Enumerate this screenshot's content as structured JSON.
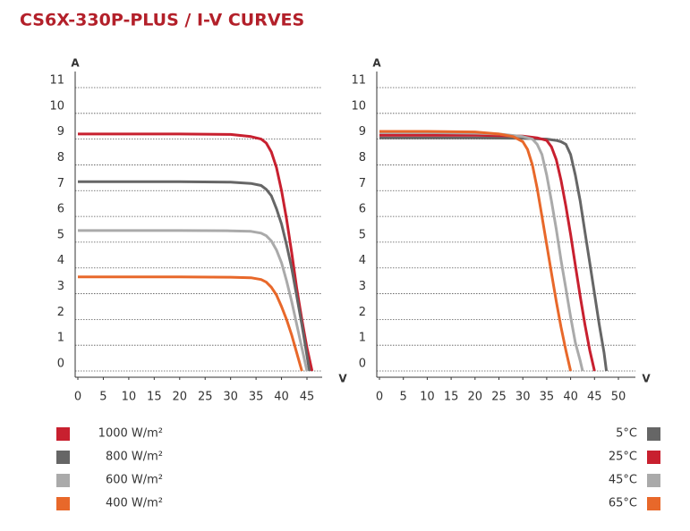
{
  "title": "CS6X-330P-PLUS / I-V CURVES",
  "chart_data": [
    {
      "type": "line",
      "y_label": "A",
      "x_label": "V",
      "xlim": [
        0,
        45
      ],
      "xticks": [
        0,
        5,
        10,
        15,
        20,
        25,
        30,
        35,
        40,
        45
      ],
      "ylim": [
        0,
        11
      ],
      "yticks": [
        0,
        1,
        2,
        3,
        4,
        5,
        6,
        7,
        8,
        9,
        10,
        11
      ],
      "grid": true,
      "legend": "bottom-left",
      "series": [
        {
          "name": "1000 W/m²",
          "color": "#c8202f",
          "x": [
            0,
            10,
            20,
            30,
            34,
            36,
            37,
            38,
            39,
            40,
            41,
            42,
            43,
            44,
            45,
            46
          ],
          "values": [
            9.2,
            9.2,
            9.2,
            9.18,
            9.1,
            9.0,
            8.85,
            8.5,
            7.9,
            7.0,
            5.9,
            4.6,
            3.2,
            2.0,
            0.9,
            0
          ]
        },
        {
          "name": "800 W/m²",
          "color": "#666666",
          "x": [
            0,
            10,
            20,
            30,
            34,
            36,
            37,
            38,
            39,
            40,
            41,
            42,
            43,
            44,
            45,
            45.5
          ],
          "values": [
            7.35,
            7.35,
            7.35,
            7.33,
            7.28,
            7.2,
            7.05,
            6.8,
            6.3,
            5.7,
            4.9,
            4.0,
            2.9,
            1.8,
            0.6,
            0
          ]
        },
        {
          "name": "600 W/m²",
          "color": "#aaaaaa",
          "x": [
            0,
            10,
            20,
            30,
            34,
            36,
            37,
            38,
            39,
            40,
            41,
            42,
            43,
            44,
            45
          ],
          "values": [
            5.45,
            5.45,
            5.45,
            5.44,
            5.42,
            5.35,
            5.25,
            5.05,
            4.7,
            4.2,
            3.5,
            2.7,
            1.8,
            0.9,
            0
          ]
        },
        {
          "name": "400 W/m²",
          "color": "#e8682a",
          "x": [
            0,
            10,
            20,
            30,
            34,
            36,
            37,
            38,
            39,
            40,
            41,
            42,
            43,
            44
          ],
          "values": [
            3.65,
            3.65,
            3.65,
            3.64,
            3.62,
            3.55,
            3.45,
            3.25,
            2.95,
            2.5,
            2.0,
            1.4,
            0.7,
            0
          ]
        }
      ]
    },
    {
      "type": "line",
      "y_label": "A",
      "x_label": "V",
      "xlim": [
        0,
        50
      ],
      "xticks": [
        0,
        5,
        10,
        15,
        20,
        25,
        30,
        35,
        40,
        45,
        50
      ],
      "ylim": [
        0,
        11
      ],
      "yticks": [
        0,
        1,
        2,
        3,
        4,
        5,
        6,
        7,
        8,
        9,
        10,
        11
      ],
      "grid": true,
      "legend": "bottom-right",
      "series": [
        {
          "name": "5°C",
          "color": "#666666",
          "x": [
            0,
            10,
            20,
            30,
            35,
            37,
            38,
            39,
            40,
            41,
            42,
            43,
            44,
            45,
            46,
            47,
            47.5
          ],
          "values": [
            9.05,
            9.05,
            9.05,
            9.03,
            9.0,
            8.95,
            8.9,
            8.8,
            8.4,
            7.6,
            6.6,
            5.4,
            4.2,
            3.0,
            1.8,
            0.7,
            0
          ]
        },
        {
          "name": "25°C",
          "color": "#c8202f",
          "x": [
            0,
            10,
            20,
            30,
            33,
            35,
            36,
            37,
            38,
            39,
            40,
            41,
            42,
            43,
            44,
            45
          ],
          "values": [
            9.15,
            9.15,
            9.15,
            9.12,
            9.05,
            8.95,
            8.7,
            8.2,
            7.4,
            6.4,
            5.3,
            4.1,
            2.9,
            1.8,
            0.8,
            0
          ]
        },
        {
          "name": "45°C",
          "color": "#aaaaaa",
          "x": [
            0,
            10,
            20,
            25,
            30,
            32,
            33,
            34,
            35,
            36,
            37,
            38,
            39,
            40,
            41,
            42,
            42.5
          ],
          "values": [
            9.25,
            9.25,
            9.23,
            9.2,
            9.1,
            9.0,
            8.8,
            8.4,
            7.6,
            6.6,
            5.5,
            4.3,
            3.2,
            2.1,
            1.1,
            0.4,
            0
          ]
        },
        {
          "name": "65°C",
          "color": "#e8682a",
          "x": [
            0,
            10,
            20,
            25,
            28,
            30,
            31,
            32,
            33,
            34,
            35,
            36,
            37,
            38,
            39,
            40
          ],
          "values": [
            9.3,
            9.3,
            9.28,
            9.2,
            9.1,
            8.9,
            8.6,
            8.0,
            7.1,
            6.0,
            4.9,
            3.8,
            2.7,
            1.7,
            0.8,
            0
          ]
        }
      ]
    }
  ]
}
